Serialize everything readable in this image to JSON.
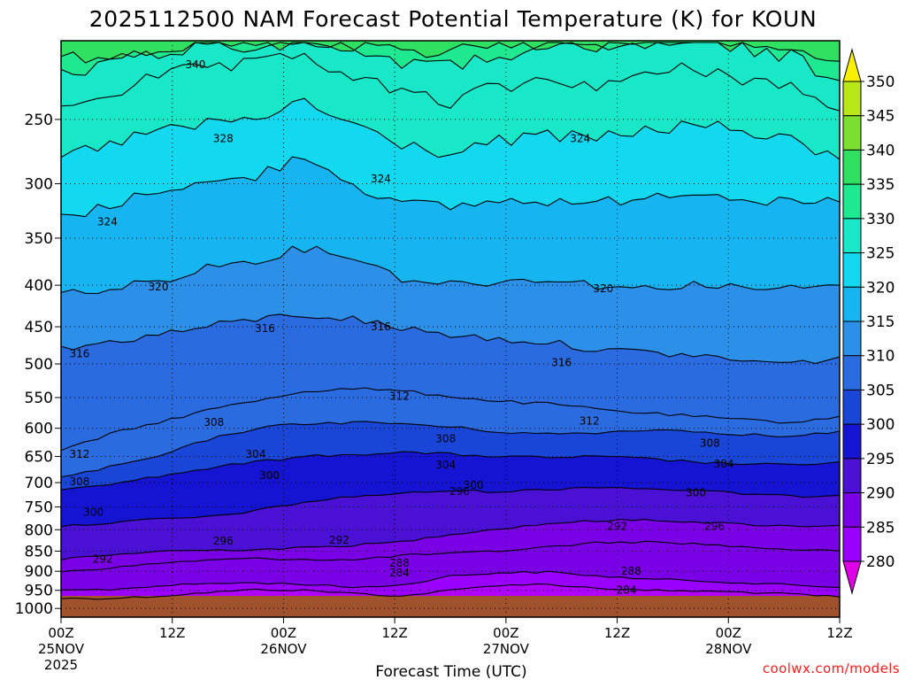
{
  "chart_data": {
    "type": "contour-time-height",
    "title": "2025112500 NAM Forecast Potential Temperature (K) for KOUN",
    "xlabel": "Forecast Time (UTC)",
    "ylabel": "",
    "pressure_range_hpa": [
      200,
      1025
    ],
    "surface_pressure_hpa": 965,
    "pressure_ticks": [
      250,
      300,
      350,
      400,
      450,
      500,
      550,
      600,
      650,
      700,
      750,
      800,
      850,
      900,
      950,
      1000
    ],
    "pressure_tick_labels": [
      "250",
      "300",
      "350",
      "400",
      "450",
      "500",
      "550",
      "600",
      "650",
      "700",
      "750",
      "800",
      "850",
      "900",
      "950",
      "1000"
    ],
    "time_ticks": [
      {
        "hour": 0,
        "label": "00Z",
        "date": "25NOV",
        "year": "2025"
      },
      {
        "hour": 12,
        "label": "12Z",
        "date": "",
        "year": ""
      },
      {
        "hour": 24,
        "label": "00Z",
        "date": "26NOV",
        "year": ""
      },
      {
        "hour": 36,
        "label": "12Z",
        "date": "",
        "year": ""
      },
      {
        "hour": 48,
        "label": "00Z",
        "date": "27NOV",
        "year": ""
      },
      {
        "hour": 60,
        "label": "12Z",
        "date": "",
        "year": ""
      },
      {
        "hour": 72,
        "label": "00Z",
        "date": "28NOV",
        "year": ""
      },
      {
        "hour": 84,
        "label": "12Z",
        "date": "",
        "year": ""
      }
    ],
    "time_range_hours": [
      0,
      84
    ],
    "colorbar": {
      "levels": [
        280,
        285,
        290,
        295,
        300,
        305,
        310,
        315,
        320,
        325,
        330,
        335,
        340,
        345,
        350
      ],
      "labels": [
        "280",
        "285",
        "290",
        "295",
        "300",
        "305",
        "310",
        "315",
        "320",
        "325",
        "330",
        "335",
        "340",
        "345",
        "350"
      ],
      "colors": [
        "#b000ff",
        "#9a00ff",
        "#7a00e6",
        "#4a10d4",
        "#1414d2",
        "#1a46d8",
        "#2a6ce0",
        "#2d90e8",
        "#16b4f0",
        "#12d8f0",
        "#18e8c8",
        "#1ee890",
        "#30e060",
        "#7be030",
        "#b8e818",
        "#f8f000"
      ],
      "under_color": "#e000e8",
      "over_color": "#f8f000"
    },
    "contour_lines": [
      {
        "level": 284,
        "pressures": [
          972,
          972,
          966,
          956,
          948,
          950,
          958,
          966,
          950,
          936,
          934,
          944,
          950,
          952,
          955,
          960,
          968
        ]
      },
      {
        "level": 288,
        "pressures": [
          950,
          948,
          938,
          932,
          930,
          934,
          942,
          936,
          912,
          904,
          902,
          912,
          920,
          924,
          930,
          936,
          942
        ]
      },
      {
        "level": 292,
        "pressures": [
          900,
          892,
          880,
          872,
          868,
          870,
          872,
          860,
          856,
          850,
          840,
          830,
          828,
          832,
          840,
          846,
          850
        ]
      },
      {
        "level": 296,
        "pressures": [
          870,
          860,
          850,
          848,
          846,
          842,
          836,
          828,
          810,
          798,
          786,
          780,
          778,
          782,
          788,
          792,
          790
        ]
      },
      {
        "level": 300,
        "pressures": [
          792,
          785,
          776,
          772,
          758,
          740,
          728,
          722,
          716,
          718,
          714,
          708,
          712,
          716,
          722,
          728,
          726
        ]
      },
      {
        "level": 304,
        "pressures": [
          712,
          702,
          688,
          672,
          660,
          650,
          646,
          642,
          646,
          650,
          652,
          650,
          654,
          660,
          664,
          666,
          660
        ]
      },
      {
        "level": 308,
        "pressures": [
          690,
          670,
          650,
          620,
          600,
          592,
          590,
          592,
          598,
          606,
          610,
          608,
          602,
          605,
          610,
          615,
          605
        ]
      },
      {
        "level": 312,
        "pressures": [
          640,
          610,
          590,
          570,
          555,
          540,
          536,
          540,
          548,
          556,
          560,
          568,
          575,
          580,
          586,
          590,
          580
        ]
      },
      {
        "level": 316,
        "pressures": [
          480,
          470,
          460,
          450,
          440,
          435,
          440,
          452,
          460,
          466,
          470,
          480,
          484,
          488,
          495,
          500,
          490
        ]
      },
      {
        "level": 320,
        "pressures": [
          410,
          405,
          395,
          380,
          372,
          360,
          368,
          392,
          398,
          396,
          392,
          400,
          404,
          398,
          404,
          404,
          400
        ]
      },
      {
        "level": 324,
        "pressures": [
          330,
          320,
          304,
          300,
          294,
          276,
          300,
          318,
          320,
          315,
          315,
          318,
          310,
          306,
          312,
          318,
          316
        ]
      },
      {
        "level": 328,
        "pressures": [
          278,
          268,
          258,
          254,
          250,
          238,
          254,
          268,
          276,
          266,
          262,
          264,
          258,
          254,
          258,
          266,
          280
        ]
      },
      {
        "level": 332,
        "pressures": [
          240,
          232,
          222,
          216,
          215,
          208,
          222,
          232,
          238,
          228,
          224,
          226,
          222,
          216,
          222,
          228,
          244
        ]
      },
      {
        "level": 336,
        "pressures": [
          220,
          214,
          206,
          202,
          202,
          200,
          204,
          212,
          216,
          208,
          204,
          206,
          202,
          200,
          204,
          210,
          224
        ]
      },
      {
        "level": 340,
        "pressures": [
          210,
          206,
          204,
          202,
          202,
          200,
          202,
          204,
          206,
          202,
          200,
          202,
          200,
          200,
          202,
          204,
          212
        ]
      }
    ],
    "contour_labels": [
      {
        "text": "340",
        "hour": 14.5,
        "pressure": 214
      },
      {
        "text": "328",
        "hour": 17.5,
        "pressure": 264
      },
      {
        "text": "324",
        "hour": 34.5,
        "pressure": 296
      },
      {
        "text": "324",
        "hour": 5.0,
        "pressure": 334
      },
      {
        "text": "324",
        "hour": 56.0,
        "pressure": 264
      },
      {
        "text": "320",
        "hour": 10.5,
        "pressure": 402
      },
      {
        "text": "320",
        "hour": 58.5,
        "pressure": 404
      },
      {
        "text": "316",
        "hour": 22.0,
        "pressure": 452
      },
      {
        "text": "316",
        "hour": 34.5,
        "pressure": 450
      },
      {
        "text": "316",
        "hour": 2.0,
        "pressure": 486
      },
      {
        "text": "316",
        "hour": 54.0,
        "pressure": 498
      },
      {
        "text": "312",
        "hour": 36.5,
        "pressure": 548
      },
      {
        "text": "312",
        "hour": 57.0,
        "pressure": 588
      },
      {
        "text": "312",
        "hour": 2.0,
        "pressure": 646
      },
      {
        "text": "308",
        "hour": 16.5,
        "pressure": 590
      },
      {
        "text": "308",
        "hour": 41.5,
        "pressure": 618
      },
      {
        "text": "308",
        "hour": 70.0,
        "pressure": 626
      },
      {
        "text": "308",
        "hour": 2.0,
        "pressure": 698
      },
      {
        "text": "304",
        "hour": 21.0,
        "pressure": 646
      },
      {
        "text": "304",
        "hour": 41.5,
        "pressure": 666
      },
      {
        "text": "304",
        "hour": 71.5,
        "pressure": 664
      },
      {
        "text": "300",
        "hour": 22.5,
        "pressure": 686
      },
      {
        "text": "300",
        "hour": 44.5,
        "pressure": 705
      },
      {
        "text": "300",
        "hour": 68.5,
        "pressure": 720
      },
      {
        "text": "300",
        "hour": 3.5,
        "pressure": 761
      },
      {
        "text": "296",
        "hour": 43.0,
        "pressure": 718
      },
      {
        "text": "296",
        "hour": 17.5,
        "pressure": 826
      },
      {
        "text": "296",
        "hour": 70.5,
        "pressure": 792
      },
      {
        "text": "292",
        "hour": 30.0,
        "pressure": 824
      },
      {
        "text": "292",
        "hour": 60.0,
        "pressure": 792
      },
      {
        "text": "292",
        "hour": 4.5,
        "pressure": 870
      },
      {
        "text": "288",
        "hour": 36.5,
        "pressure": 880
      },
      {
        "text": "288",
        "hour": 61.5,
        "pressure": 900
      },
      {
        "text": "284",
        "hour": 36.5,
        "pressure": 904
      },
      {
        "text": "284",
        "hour": 61.0,
        "pressure": 950
      }
    ]
  },
  "credit": "coolwx.com/models"
}
